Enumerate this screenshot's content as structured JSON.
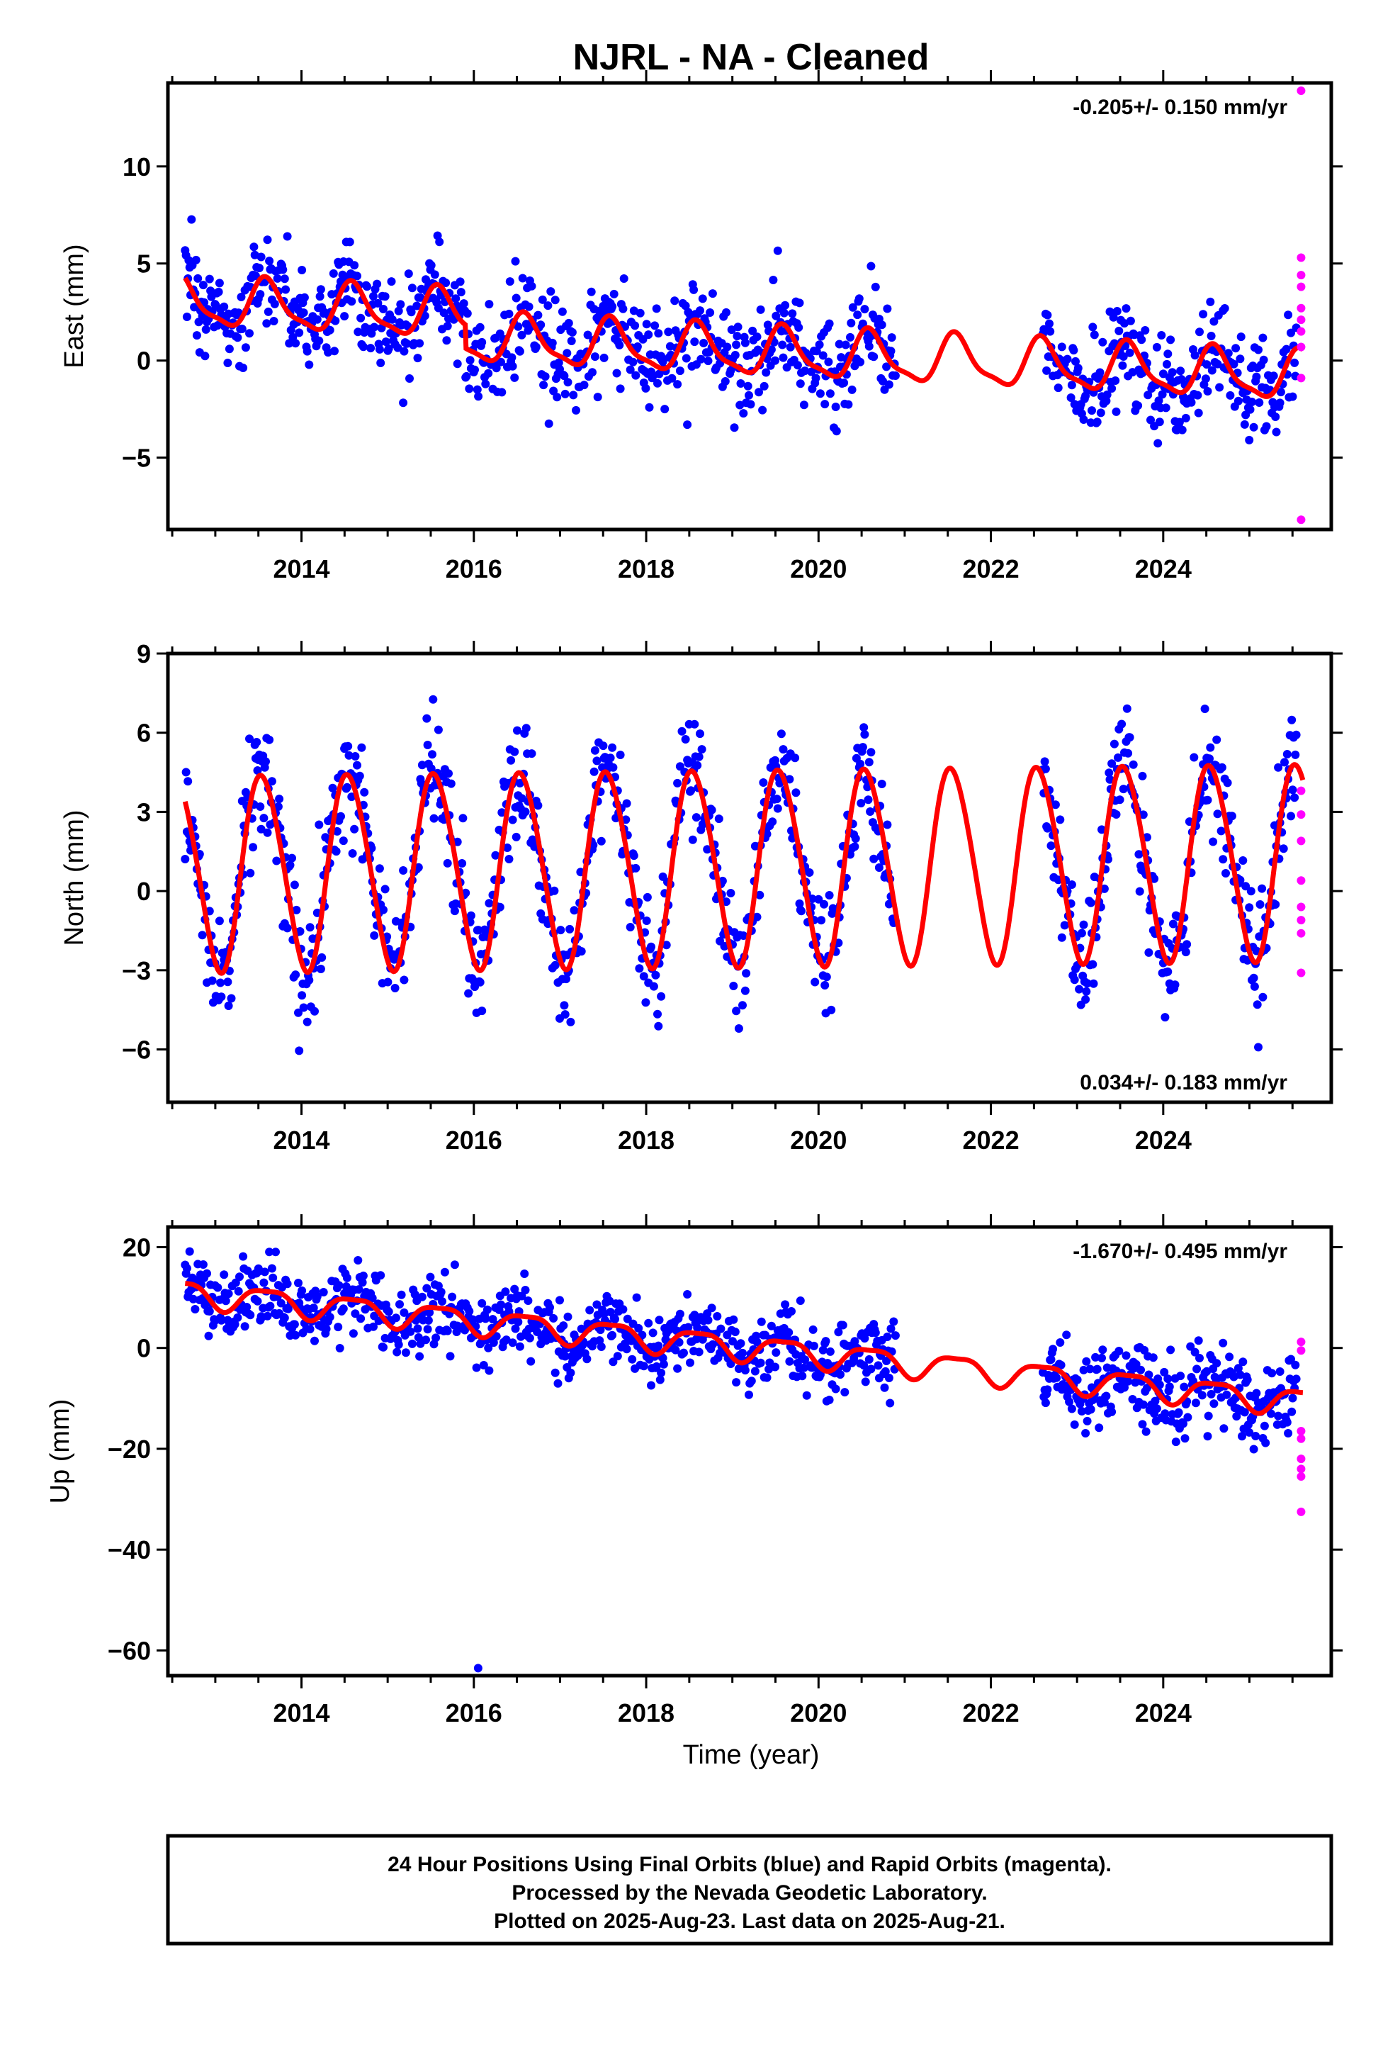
{
  "title": "NJRL  - NA - Cleaned",
  "xlabel": "Time (year)",
  "footer": {
    "lines": [
      "24 Hour Positions Using Final Orbits (blue) and Rapid Orbits (magenta).",
      "Processed by the Nevada Geodetic Laboratory.",
      "Plotted on 2025-Aug-23. Last data on 2025-Aug-21."
    ]
  },
  "colors": {
    "final_points": "#0000ff",
    "rapid_points": "#ff00ff",
    "model_curve": "#ff0000",
    "frame": "#000000"
  },
  "chart_data": [
    {
      "type": "scatter",
      "ylabel": "East (mm)",
      "rate_label": "-0.205+/- 0.150 mm/yr",
      "rate_position": "top-right",
      "xlim": [
        2012.45,
        2025.95
      ],
      "ylim": [
        -8.7,
        14.3
      ],
      "x_ticks": [
        2014,
        2016,
        2018,
        2020,
        2022,
        2024
      ],
      "y_ticks": [
        -5,
        0,
        5,
        10
      ],
      "data_gap": [
        2020.9,
        2022.6
      ],
      "model": {
        "offset": 3.0,
        "rate": -0.205,
        "t0": 2012.65,
        "annual_amp": 1.2,
        "annual_phase_year": 2013.6,
        "semiannual_amp": 0.35,
        "semiannual_phase_year": 2013.55,
        "step_2015_9": -1.2
      },
      "final_points_summary": {
        "x_range": [
          2012.65,
          2025.55
        ],
        "scatter_std": 1.3,
        "y_min": -4.7,
        "y_max": 8.2
      },
      "rapid_points": [
        {
          "x": 2025.6,
          "y": 13.9
        },
        {
          "x": 2025.6,
          "y": 5.3
        },
        {
          "x": 2025.6,
          "y": 4.4
        },
        {
          "x": 2025.6,
          "y": 3.8
        },
        {
          "x": 2025.6,
          "y": 2.7
        },
        {
          "x": 2025.6,
          "y": 2.1
        },
        {
          "x": 2025.6,
          "y": 1.5
        },
        {
          "x": 2025.6,
          "y": 0.7
        },
        {
          "x": 2025.6,
          "y": -0.9
        },
        {
          "x": 2025.6,
          "y": -8.2
        }
      ]
    },
    {
      "type": "scatter",
      "ylabel": "North (mm)",
      "rate_label": "0.034+/- 0.183 mm/yr",
      "rate_position": "bottom-right",
      "xlim": [
        2012.45,
        2025.95
      ],
      "ylim": [
        -8.0,
        9.0
      ],
      "x_ticks": [
        2014,
        2016,
        2018,
        2020,
        2022,
        2024
      ],
      "y_ticks": [
        -6,
        -3,
        0,
        3,
        6,
        9
      ],
      "data_gap": [
        2020.9,
        2022.6
      ],
      "model": {
        "offset": 0.7,
        "rate": 0.034,
        "t0": 2012.65,
        "annual_amp": 3.7,
        "annual_phase_year": 2013.55,
        "semiannual_amp": 0.3,
        "semiannual_phase_year": 2013.4
      },
      "final_points_summary": {
        "x_range": [
          2012.65,
          2025.55
        ],
        "scatter_std": 1.1,
        "y_min": -7.8,
        "y_max": 8.8
      },
      "rapid_points": [
        {
          "x": 2025.6,
          "y": 3.8
        },
        {
          "x": 2025.6,
          "y": 2.9
        },
        {
          "x": 2025.6,
          "y": 1.9
        },
        {
          "x": 2025.6,
          "y": 0.4
        },
        {
          "x": 2025.6,
          "y": -0.6
        },
        {
          "x": 2025.6,
          "y": -1.1
        },
        {
          "x": 2025.6,
          "y": -1.6
        },
        {
          "x": 2025.6,
          "y": -3.1
        }
      ]
    },
    {
      "type": "scatter",
      "ylabel": "Up (mm)",
      "rate_label": "-1.670+/- 0.495 mm/yr",
      "rate_position": "top-right",
      "xlim": [
        2012.45,
        2025.95
      ],
      "ylim": [
        -65,
        24
      ],
      "x_ticks": [
        2014,
        2016,
        2018,
        2020,
        2022,
        2024
      ],
      "y_ticks": [
        -60,
        -40,
        -20,
        0,
        20
      ],
      "data_gap": [
        2020.9,
        2022.6
      ],
      "model": {
        "offset": 11.0,
        "rate": -1.67,
        "t0": 2012.65,
        "annual_amp": 2.5,
        "annual_phase_year": 2013.6,
        "semiannual_amp": 0.7,
        "semiannual_phase_year": 2013.35
      },
      "final_points_summary": {
        "x_range": [
          2012.65,
          2025.55
        ],
        "scatter_std": 3.6,
        "y_min": -25,
        "y_max": 22,
        "outlier": {
          "x": 2016.05,
          "y": -63.5
        }
      },
      "rapid_points": [
        {
          "x": 2025.6,
          "y": 1.2
        },
        {
          "x": 2025.6,
          "y": -0.5
        },
        {
          "x": 2025.6,
          "y": -16.5
        },
        {
          "x": 2025.6,
          "y": -18.0
        },
        {
          "x": 2025.6,
          "y": -22.0
        },
        {
          "x": 2025.6,
          "y": -24.0
        },
        {
          "x": 2025.6,
          "y": -25.5
        },
        {
          "x": 2025.6,
          "y": -32.5
        }
      ]
    }
  ]
}
